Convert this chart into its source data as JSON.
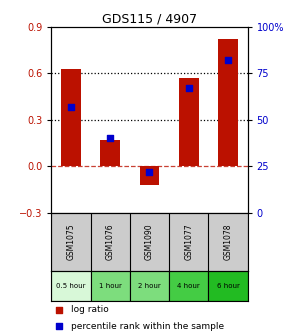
{
  "title": "GDS115 / 4907",
  "samples": [
    "GSM1075",
    "GSM1076",
    "GSM1090",
    "GSM1077",
    "GSM1078"
  ],
  "time_labels": [
    "0.5 hour",
    "1 hour",
    "2 hour",
    "4 hour",
    "6 hour"
  ],
  "time_colors": [
    "#d8f8d8",
    "#7ddd7d",
    "#7ddd7d",
    "#44cc44",
    "#22bb22"
  ],
  "log_ratio": [
    0.63,
    0.17,
    -0.12,
    0.57,
    0.82
  ],
  "percentile_pct": [
    57,
    40,
    22,
    67,
    82
  ],
  "bar_color": "#bb1100",
  "dot_color": "#0000cc",
  "ylim_left": [
    -0.3,
    0.9
  ],
  "ylim_right": [
    0,
    100
  ],
  "yticks_left": [
    -0.3,
    0.0,
    0.3,
    0.6,
    0.9
  ],
  "yticks_right": [
    0,
    25,
    50,
    75,
    100
  ],
  "hline_dotted": [
    0.3,
    0.6
  ],
  "hline_dash": 0.0,
  "bg_color": "#ffffff",
  "legend_log_label": "log ratio",
  "legend_pct_label": "percentile rank within the sample",
  "bar_width": 0.5
}
